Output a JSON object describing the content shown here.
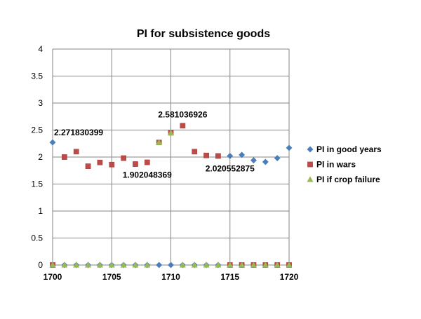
{
  "chart_data": {
    "type": "scatter",
    "title": "PI for subsistence goods",
    "xlabel": "",
    "ylabel": "",
    "xlim": [
      1700,
      1720
    ],
    "ylim": [
      0,
      4
    ],
    "xticks": [
      1700,
      1705,
      1710,
      1715,
      1720
    ],
    "yticks": [
      0,
      0.5,
      1,
      1.5,
      2,
      2.5,
      3,
      3.5,
      4
    ],
    "xtick_labels": [
      "1700",
      "1705",
      "1710",
      "1715",
      "1720"
    ],
    "ytick_labels": [
      "0",
      "0.5",
      "1",
      "1.5",
      "2",
      "2.5",
      "3",
      "3.5",
      "4"
    ],
    "grid": "vertical and horizontal major gridlines",
    "legend_position": "right",
    "series": [
      {
        "name": "PI in good years",
        "marker": "diamond",
        "color": "#4a7ebb",
        "x": [
          1700,
          1701,
          1702,
          1703,
          1704,
          1705,
          1706,
          1707,
          1708,
          1709,
          1710,
          1711,
          1712,
          1713,
          1714,
          1715,
          1716,
          1717,
          1718,
          1719,
          1720
        ],
        "y": [
          2.271830399,
          0,
          0,
          0,
          0,
          0,
          0,
          0,
          0,
          0,
          0,
          0,
          0,
          0,
          0,
          2.020552875,
          2.04,
          1.94,
          1.91,
          1.98,
          2.17
        ]
      },
      {
        "name": "PI in wars",
        "marker": "square",
        "color": "#be4b48",
        "x": [
          1700,
          1701,
          1702,
          1703,
          1704,
          1705,
          1706,
          1707,
          1708,
          1709,
          1710,
          1711,
          1712,
          1713,
          1714,
          1715,
          1716,
          1717,
          1718,
          1719,
          1720
        ],
        "y": [
          0,
          2.0,
          2.1,
          1.83,
          1.9,
          1.86,
          1.98,
          1.87,
          1.902048369,
          2.27,
          2.45,
          2.581036926,
          2.1,
          2.03,
          2.02,
          0,
          0,
          0,
          0,
          0,
          0
        ]
      },
      {
        "name": "PI if crop failure",
        "marker": "triangle",
        "color": "#98b954",
        "x": [
          1700,
          1701,
          1702,
          1703,
          1704,
          1705,
          1706,
          1707,
          1708,
          1709,
          1710,
          1711,
          1712,
          1713,
          1714,
          1715,
          1716,
          1717,
          1718,
          1719,
          1720
        ],
        "y": [
          0,
          0,
          0,
          0,
          0,
          0,
          0,
          0,
          0,
          2.27,
          2.45,
          0,
          0,
          0,
          0,
          0,
          0,
          0,
          0,
          0,
          0
        ]
      }
    ],
    "annotations": [
      {
        "text": "2.271830399",
        "x": 1700,
        "y": 2.271830399,
        "placement": "above-right"
      },
      {
        "text": "2.581036926",
        "x": 1711,
        "y": 2.581036926,
        "placement": "above"
      },
      {
        "text": "1.902048369",
        "x": 1708,
        "y": 1.902048369,
        "placement": "below"
      },
      {
        "text": "2.020552875",
        "x": 1715,
        "y": 2.020552875,
        "placement": "below"
      }
    ]
  }
}
